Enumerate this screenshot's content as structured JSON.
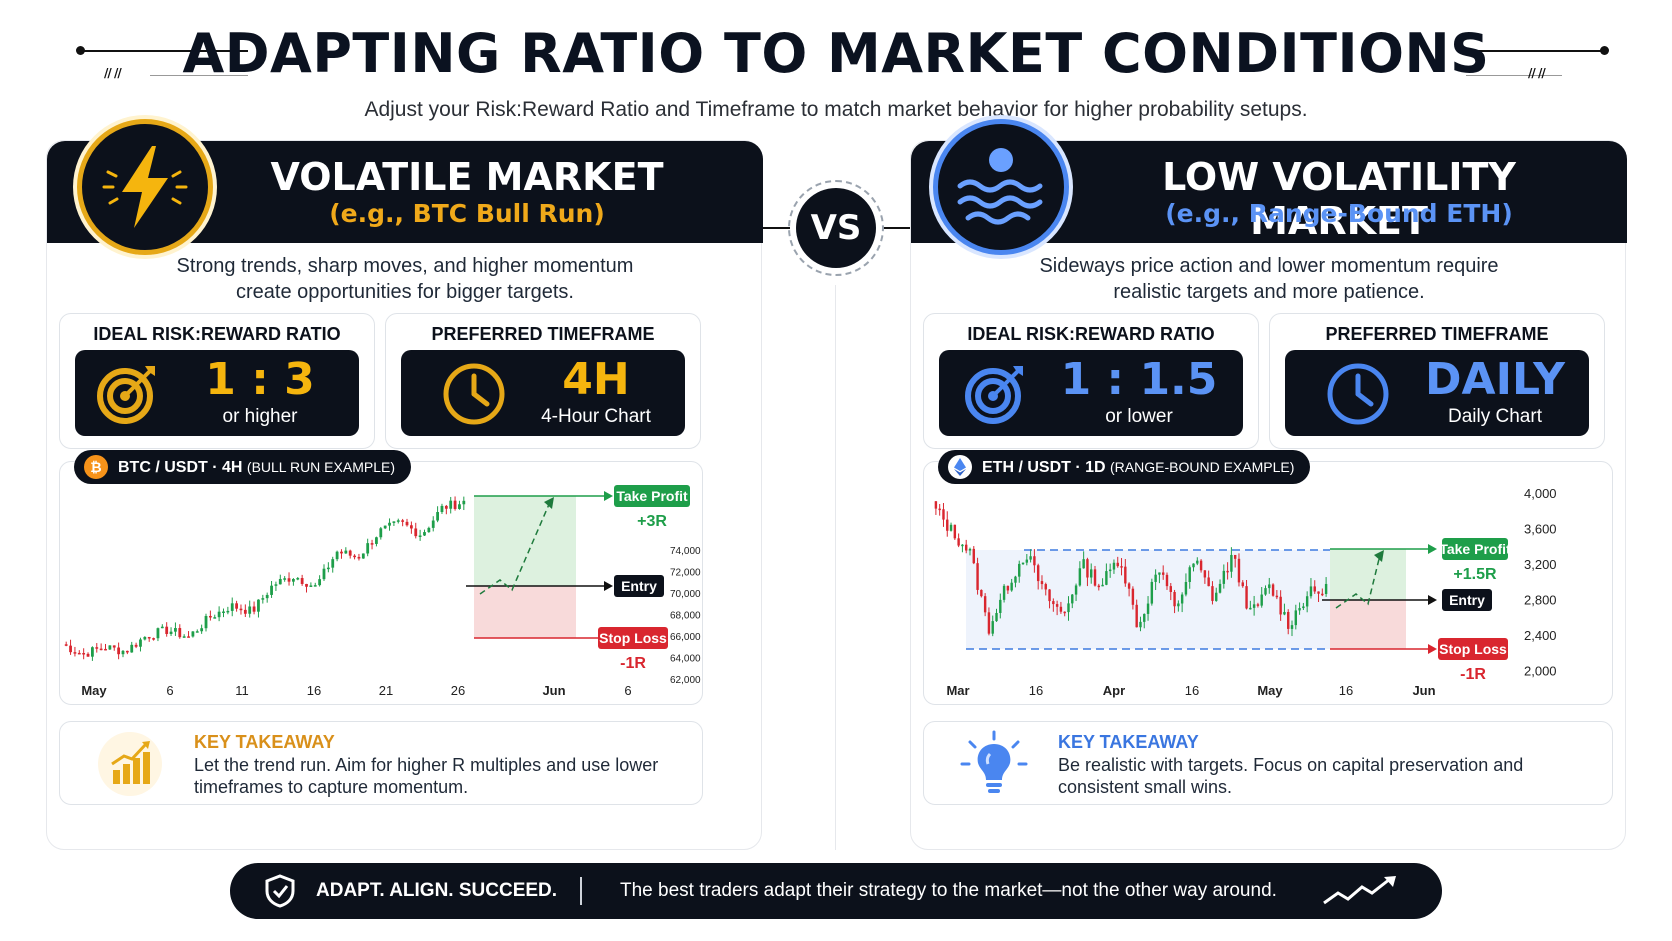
{
  "header": {
    "title": "ADAPTING RATIO TO MARKET CONDITIONS",
    "subtitle": "Adjust your Risk:Reward Ratio and Timeframe to match market behavior for higher probability setups."
  },
  "colors": {
    "gold": "#e6a817",
    "blue": "#4a86f0",
    "dark": "#0c111b",
    "green": "#1e9e4a",
    "red": "#d9262f"
  },
  "vs_label": "VS",
  "volatile": {
    "title": "VOLATILE MARKET",
    "subtitle": "(e.g., BTC Bull Run)",
    "description_line1": "Strong trends, sharp moves, and higher momentum",
    "description_line2": "create opportunities for bigger targets.",
    "ratio_label": "IDEAL RISK:REWARD RATIO",
    "ratio_value": "1 : 3",
    "ratio_note": "or higher",
    "timeframe_label": "PREFERRED TIMEFRAME",
    "timeframe_value": "4H",
    "timeframe_note": "4-Hour Chart",
    "chart_pill": "BTC / USDT · 4H",
    "chart_pill_example": "(BULL RUN EXAMPLE)",
    "takeaway_title": "KEY TAKEAWAY",
    "takeaway_text": "Let the trend run. Aim for higher R multiples and use lower timeframes to capture momentum.",
    "icon": "lightning-icon"
  },
  "low_vol": {
    "title": "LOW VOLATILITY MARKET",
    "subtitle": "(e.g., Range-Bound ETH)",
    "description_line1": "Sideways price action and lower momentum require",
    "description_line2": "realistic targets and more patience.",
    "ratio_label": "IDEAL RISK:REWARD RATIO",
    "ratio_value": "1 : 1.5",
    "ratio_note": "or lower",
    "timeframe_label": "PREFERRED TIMEFRAME",
    "timeframe_value": "DAILY",
    "timeframe_note": "Daily Chart",
    "chart_pill": "ETH / USDT · 1D",
    "chart_pill_example": "(RANGE-BOUND EXAMPLE)",
    "takeaway_title": "KEY TAKEAWAY",
    "takeaway_text": "Be realistic with targets. Focus on capital preservation and consistent small wins.",
    "icon": "waves-icon"
  },
  "chart_data": [
    {
      "type": "candlestick",
      "title": "BTC / USDT · 4H",
      "x_ticks": [
        "May",
        "6",
        "11",
        "16",
        "21",
        "26",
        "Jun",
        "6"
      ],
      "y_ticks": [
        "74,000",
        "72,000",
        "70,000",
        "68,000",
        "66,000",
        "64,000",
        "62,000"
      ],
      "ylim": [
        62000,
        74000
      ],
      "trend": "uptrend",
      "close_path": [
        63600,
        62900,
        63400,
        63100,
        64200,
        64600,
        64100,
        65500,
        66300,
        65900,
        67800,
        68400,
        67600,
        70100,
        69700,
        71500,
        72100,
        71300,
        73200,
        73600
      ],
      "annotations": {
        "take_profit_label": "Take Profit",
        "take_profit_r": "+3R",
        "entry_label": "Entry",
        "stop_loss_label": "Stop Loss",
        "stop_loss_r": "-1R"
      }
    },
    {
      "type": "candlestick",
      "title": "ETH / USDT · 1D",
      "x_ticks": [
        "Mar",
        "16",
        "Apr",
        "16",
        "May",
        "16",
        "Jun"
      ],
      "y_ticks": [
        "4,000",
        "3,600",
        "3,200",
        "2,800",
        "2,400",
        "2,000"
      ],
      "ylim": [
        2000,
        4000
      ],
      "trend": "range-bound",
      "close_path": [
        3900,
        3600,
        3350,
        2450,
        2950,
        3350,
        2850,
        2600,
        3200,
        2950,
        3300,
        2450,
        3150,
        2700,
        3250,
        2800,
        3300,
        2600,
        2950,
        2500,
        2850,
        2900
      ],
      "annotations": {
        "take_profit_label": "Take Profit",
        "take_profit_r": "+1.5R",
        "entry_label": "Entry",
        "stop_loss_label": "Stop Loss",
        "stop_loss_r": "-1R"
      }
    }
  ],
  "footer": {
    "motto": "ADAPT. ALIGN. SUCCEED.",
    "text": "The best traders adapt their strategy to the market—not the other way around."
  }
}
